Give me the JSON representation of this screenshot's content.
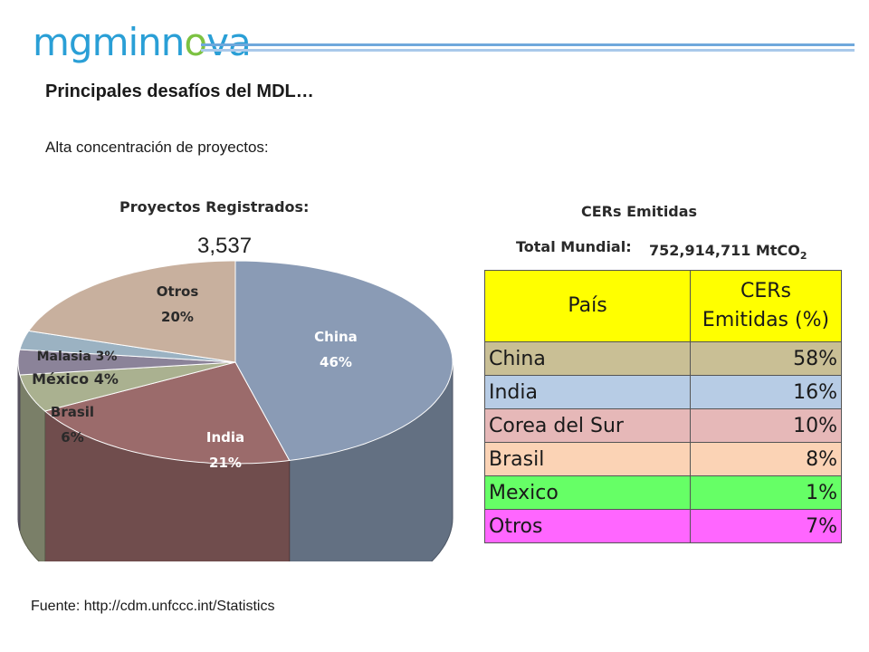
{
  "logo": {
    "part1": "mgminn",
    "part2": "o",
    "part3": "va"
  },
  "colors": {
    "logo_blue": "#2a9fd6",
    "logo_green": "#7cc242"
  },
  "heading": "Principales desafíos del MDL…",
  "subheading": "Alta concentración de proyectos:",
  "pie": {
    "title": "Proyectos Registrados:",
    "total": "3,537"
  },
  "cer": {
    "title": "CERs Emitidas",
    "total_label": "Total Mundial:",
    "total_value": "752,914,711 MtCO",
    "total_sub": "2",
    "header_country": "País",
    "header_cers_line1": "CERs",
    "header_cers_line2": "Emitidas  (%)"
  },
  "source": "Fuente: http://cdm.unfccc.int/Statistics",
  "chart_data": [
    {
      "type": "pie",
      "title": "Proyectos Registrados:",
      "total": "3,537",
      "categories": [
        "China",
        "India",
        "Brasil",
        "México",
        "Malasia",
        "Otros"
      ],
      "values": [
        46,
        21,
        6,
        4,
        3,
        20
      ],
      "labels": [
        "46%",
        "21%",
        "6%",
        "4%",
        "3%",
        "20%"
      ],
      "colors": [
        "#8a9bb5",
        "#9b6b6b",
        "#aab190",
        "#8b8399",
        "#9bb2c2",
        "#c8b09e"
      ],
      "style": "3d"
    },
    {
      "type": "table",
      "title": "CERs Emitidas",
      "columns": [
        "País",
        "CERs Emitidas  (%)"
      ],
      "rows": [
        {
          "country": "China",
          "value": "58%",
          "color": "#c9bf95"
        },
        {
          "country": "India",
          "value": "16%",
          "color": "#b7cce5"
        },
        {
          "country": "Corea del Sur",
          "value": "10%",
          "color": "#e6b8b8"
        },
        {
          "country": "Brasil",
          "value": "8%",
          "color": "#fbd3b5"
        },
        {
          "country": "Mexico",
          "value": "1%",
          "color": "#66ff66"
        },
        {
          "country": "Otros",
          "value": "7%",
          "color": "#ff66ff"
        }
      ]
    }
  ]
}
